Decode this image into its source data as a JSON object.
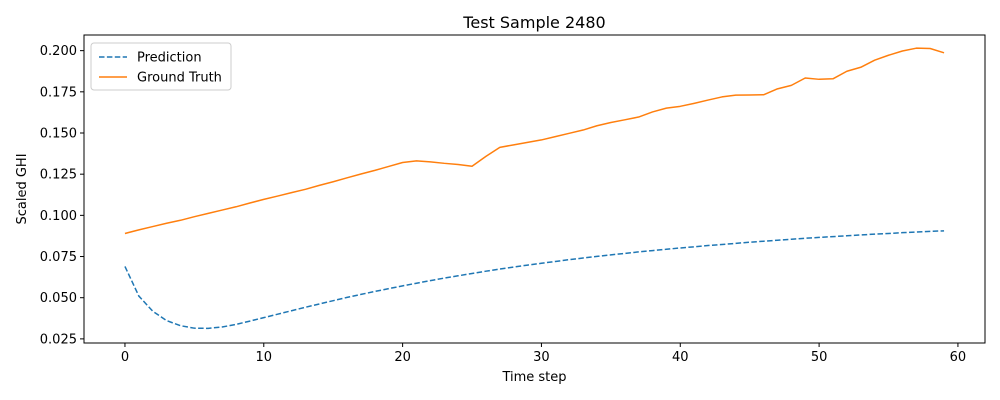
{
  "chart_data": {
    "type": "line",
    "title": "Test Sample 2480",
    "xlabel": "Time step",
    "ylabel": "Scaled GHI",
    "xlim": [
      -2.95,
      61.95
    ],
    "ylim": [
      0.0225,
      0.2095
    ],
    "xticks": [
      0,
      10,
      20,
      30,
      40,
      50,
      60
    ],
    "xtick_labels": [
      "0",
      "10",
      "20",
      "30",
      "40",
      "50",
      "60"
    ],
    "yticks": [
      0.025,
      0.05,
      0.075,
      0.1,
      0.125,
      0.15,
      0.175,
      0.2
    ],
    "ytick_labels": [
      "0.025",
      "0.050",
      "0.075",
      "0.100",
      "0.125",
      "0.150",
      "0.175",
      "0.200"
    ],
    "grid": false,
    "legend_position": "upper-left",
    "series": [
      {
        "name": "Prediction",
        "color": "#1f77b4",
        "style": "dashed",
        "x": [
          0,
          1,
          2,
          3,
          4,
          5,
          6,
          7,
          8,
          9,
          10,
          11,
          12,
          13,
          14,
          15,
          16,
          17,
          18,
          19,
          20,
          21,
          22,
          23,
          24,
          25,
          26,
          27,
          28,
          29,
          30,
          31,
          32,
          33,
          34,
          35,
          36,
          37,
          38,
          39,
          40,
          41,
          42,
          43,
          44,
          45,
          46,
          47,
          48,
          49,
          50,
          51,
          52,
          53,
          54,
          55,
          56,
          57,
          58,
          59
        ],
        "values": [
          0.069,
          0.051,
          0.0418,
          0.0361,
          0.033,
          0.0315,
          0.0314,
          0.0322,
          0.0338,
          0.0358,
          0.0379,
          0.04,
          0.0421,
          0.0442,
          0.0462,
          0.0482,
          0.0502,
          0.052,
          0.0538,
          0.0555,
          0.0572,
          0.0588,
          0.0604,
          0.0619,
          0.0633,
          0.0647,
          0.0661,
          0.0674,
          0.0686,
          0.0698,
          0.0709,
          0.072,
          0.0731,
          0.0741,
          0.0751,
          0.076,
          0.0769,
          0.0778,
          0.0786,
          0.0794,
          0.0802,
          0.0809,
          0.0817,
          0.0823,
          0.083,
          0.0837,
          0.0843,
          0.0849,
          0.0855,
          0.0861,
          0.0866,
          0.0871,
          0.0876,
          0.0881,
          0.0886,
          0.089,
          0.0895,
          0.0899,
          0.0903,
          0.0906
        ]
      },
      {
        "name": "Ground Truth",
        "color": "#ff7f0e",
        "style": "solid",
        "x": [
          0,
          1,
          2,
          3,
          4,
          5,
          6,
          7,
          8,
          9,
          10,
          11,
          12,
          13,
          14,
          15,
          16,
          17,
          18,
          19,
          20,
          21,
          22,
          23,
          24,
          25,
          26,
          27,
          28,
          29,
          30,
          31,
          32,
          33,
          34,
          35,
          36,
          37,
          38,
          39,
          40,
          41,
          42,
          43,
          44,
          45,
          46,
          47,
          48,
          49,
          50,
          51,
          52,
          53,
          54,
          55,
          56,
          57,
          58,
          59
        ],
        "values": [
          0.089,
          0.0912,
          0.0932,
          0.0952,
          0.097,
          0.0992,
          0.1012,
          0.1032,
          0.1052,
          0.1075,
          0.1097,
          0.1117,
          0.1138,
          0.1158,
          0.1182,
          0.1204,
          0.1228,
          0.1251,
          0.1273,
          0.1297,
          0.1321,
          0.1331,
          0.1325,
          0.1316,
          0.1309,
          0.1298,
          0.1358,
          0.1413,
          0.1428,
          0.1443,
          0.1458,
          0.1478,
          0.1498,
          0.1518,
          0.1544,
          0.1564,
          0.158,
          0.1597,
          0.1628,
          0.1651,
          0.1662,
          0.168,
          0.17,
          0.1719,
          0.173,
          0.1731,
          0.1732,
          0.1768,
          0.1789,
          0.1834,
          0.1826,
          0.1829,
          0.1875,
          0.1899,
          0.1942,
          0.1972,
          0.1998,
          0.2015,
          0.2013,
          0.1987
        ]
      }
    ]
  }
}
